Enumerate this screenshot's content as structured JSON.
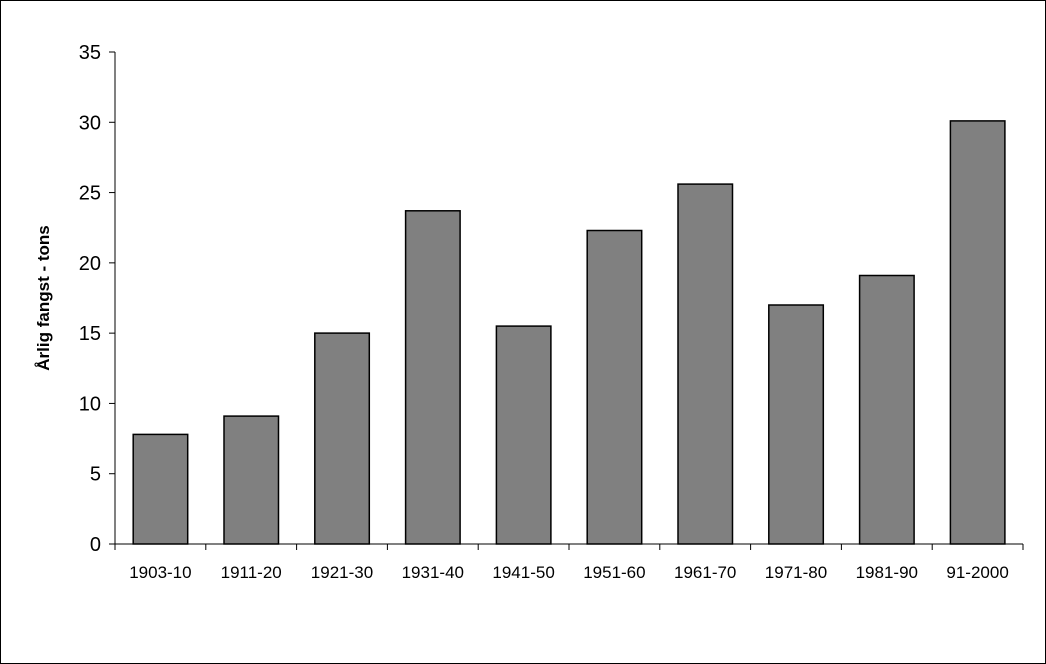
{
  "chart_data": {
    "type": "bar",
    "title": "",
    "xlabel": "",
    "ylabel": "Årlig fangst - tons",
    "categories": [
      "1903-10",
      "1911-20",
      "1921-30",
      "1931-40",
      "1941-50",
      "1951-60",
      "1961-70",
      "1971-80",
      "1981-90",
      "91-2000"
    ],
    "values": [
      7.8,
      9.1,
      15.0,
      23.7,
      15.5,
      22.3,
      25.6,
      17.0,
      19.1,
      30.1
    ],
    "ylim": [
      0,
      35
    ],
    "yticks": [
      0,
      5,
      10,
      15,
      20,
      25,
      30,
      35
    ],
    "grid": false,
    "legend": "none",
    "bar_color": "#808080",
    "bar_edge_color": "#000000"
  }
}
